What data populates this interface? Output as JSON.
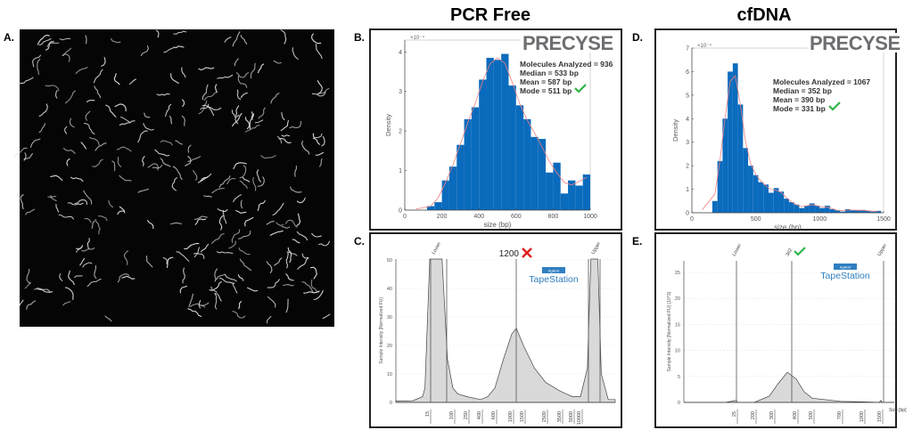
{
  "titles": {
    "left_column": "PCR Free",
    "right_column": "cfDNA"
  },
  "panel_labels": {
    "a": "A.",
    "b": "B.",
    "c": "C.",
    "d": "D.",
    "e": "E."
  },
  "logo_text": "PRECYSE",
  "tapestation": {
    "brand": "TapeStation",
    "badge": "Agilent"
  },
  "colors": {
    "bar": "#0a6bbd",
    "fit": "#f08080",
    "check": "#2eb34a",
    "cross": "#e02020",
    "logo": "#6d6e71",
    "tapestation": "#2f7fc1",
    "trace_fill": "#d9d9d9"
  },
  "chart_data": [
    {
      "panel": "B",
      "type": "bar",
      "xlabel": "size (bp)",
      "ylabel": "Density",
      "yscale_label": "×10⁻⁴",
      "xlim": [
        0,
        1000
      ],
      "ylim": [
        0,
        4.3
      ],
      "xticks": [
        0,
        200,
        400,
        600,
        800,
        1000
      ],
      "yticks": [
        0,
        1,
        2,
        3,
        4
      ],
      "bin_start": 120,
      "bin_width": 40,
      "values": [
        0.1,
        0.2,
        0.75,
        1.1,
        1.65,
        2.3,
        2.6,
        3.3,
        3.85,
        3.8,
        3.95,
        3.15,
        2.65,
        2.3,
        1.85,
        1.8,
        0.95,
        1.2,
        0.42,
        0.75,
        0.62,
        0.9
      ],
      "fit_curve": true,
      "stats": [
        "Molecules Analyzed = 936",
        "Median = 533 bp",
        "Mean = 587 bp",
        "Mode = 511 bp"
      ],
      "mode_mark": "check"
    },
    {
      "panel": "D",
      "type": "bar",
      "xlabel": "size (bp)",
      "ylabel": "Density",
      "yscale_label": "×10⁻⁴",
      "xlim": [
        0,
        1500
      ],
      "ylim": [
        0,
        7
      ],
      "xticks": [
        0,
        500,
        1000,
        1500
      ],
      "yticks": [
        0,
        1,
        2,
        3,
        4,
        5,
        6,
        7
      ],
      "bin_start": 160,
      "bin_width": 40,
      "values": [
        0.5,
        2.2,
        4.0,
        6.0,
        6.35,
        4.6,
        2.75,
        2.0,
        1.6,
        1.3,
        1.2,
        0.85,
        1.05,
        0.9,
        0.6,
        0.45,
        0.35,
        0.2,
        0.3,
        0.4,
        0.3,
        0.2,
        0.3,
        0.15,
        0.1,
        0.05,
        0.15,
        0.1,
        0.1,
        0.12,
        0.08,
        0.05,
        0.08
      ],
      "fit_curve": true,
      "stats": [
        "Molecules Analyzed = 1067",
        "Median = 352 bp",
        "Mean = 390 bp",
        "Mode = 331 bp"
      ],
      "mode_mark": "check"
    },
    {
      "panel": "C",
      "type": "area",
      "ylabel": "Sample Intensity [Normalized FU]",
      "ylim": [
        0,
        50
      ],
      "yticks": [
        0,
        10,
        20,
        30,
        40,
        50
      ],
      "xtick_labels": [
        "15",
        "100",
        "250",
        "400",
        "600",
        "1000",
        "1500",
        "2500",
        "3500",
        "5000",
        "10000"
      ],
      "markers": [
        "Lower",
        "Upper"
      ],
      "peak_label": "1200",
      "peak_mark": "cross",
      "trace": [
        [
          1,
          0.5
        ],
        [
          8,
          0.6
        ],
        [
          12,
          2
        ],
        [
          13,
          5
        ],
        [
          15,
          55
        ],
        [
          60,
          55
        ],
        [
          70,
          33
        ],
        [
          80,
          15
        ],
        [
          100,
          5
        ],
        [
          150,
          3
        ],
        [
          250,
          2
        ],
        [
          400,
          1
        ],
        [
          500,
          2
        ],
        [
          600,
          5
        ],
        [
          800,
          15
        ],
        [
          1000,
          24
        ],
        [
          1200,
          26
        ],
        [
          1500,
          20
        ],
        [
          2000,
          12
        ],
        [
          2500,
          7
        ],
        [
          3500,
          4
        ],
        [
          5000,
          2
        ],
        [
          10000,
          2
        ],
        [
          20000,
          12
        ],
        [
          25000,
          55
        ],
        [
          35000,
          55
        ],
        [
          40000,
          10
        ],
        [
          50000,
          1
        ],
        [
          60000,
          1
        ]
      ]
    },
    {
      "panel": "E",
      "type": "area",
      "ylabel": "Sample Intensity [Normalized FU] (10^3)",
      "ylim": [
        0,
        27
      ],
      "yticks": [
        0,
        5,
        10,
        15,
        20,
        25
      ],
      "xtick_labels": [
        "25",
        "200",
        "300",
        "400",
        "500",
        "700",
        "1000",
        "1500"
      ],
      "xunit": "Size [bp]",
      "markers": [
        "Lower",
        "Upper"
      ],
      "peak_label": "362",
      "peak_mark": "check",
      "trace": [
        [
          1,
          0
        ],
        [
          20,
          0
        ],
        [
          25,
          0.4
        ],
        [
          30,
          0
        ],
        [
          200,
          0
        ],
        [
          280,
          1.2
        ],
        [
          320,
          3.5
        ],
        [
          362,
          5.8
        ],
        [
          400,
          4.5
        ],
        [
          450,
          2
        ],
        [
          500,
          0.8
        ],
        [
          700,
          0.2
        ],
        [
          1000,
          0.1
        ],
        [
          1450,
          0
        ],
        [
          1500,
          0.4
        ],
        [
          1550,
          0
        ],
        [
          2000,
          0
        ]
      ]
    }
  ]
}
